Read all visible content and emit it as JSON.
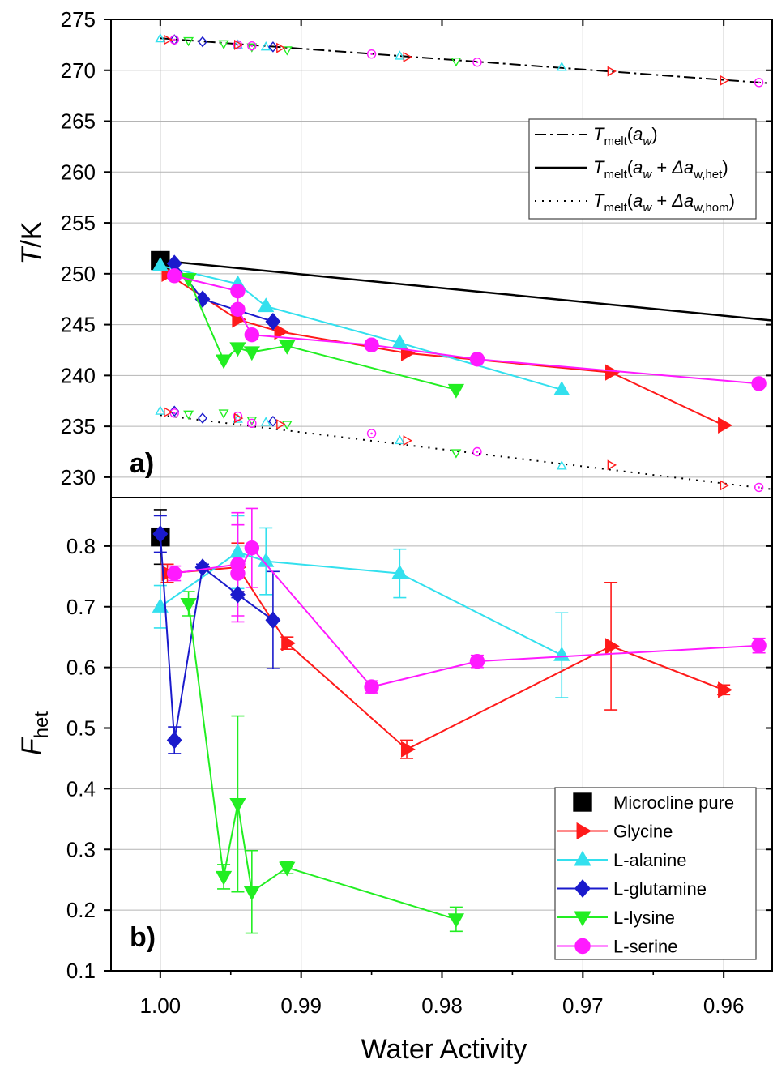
{
  "chart_data": {
    "type": "scatter",
    "x_axis": {
      "label": "Water Activity",
      "lim": [
        1.0035,
        0.9565
      ],
      "ticks": [
        1.0,
        0.99,
        0.98,
        0.97,
        0.96
      ],
      "tick_labels": [
        "1.00",
        "0.99",
        "0.98",
        "0.97",
        "0.96"
      ],
      "reversed": true,
      "grid": true
    },
    "panels": [
      {
        "id": "a",
        "label": "a)",
        "y_label_main": "T",
        "y_label_sep": "/",
        "y_label_unit": "K",
        "ylim": [
          228.0,
          275.0
        ],
        "yticks": [
          230,
          235,
          240,
          245,
          250,
          255,
          260,
          265,
          270,
          275
        ],
        "ytick_labels": [
          "230",
          "235",
          "240",
          "245",
          "250",
          "255",
          "260",
          "265",
          "270",
          "275"
        ],
        "grid": true,
        "lines": [
          {
            "id": "tmelt",
            "style": "dashdot",
            "x": [
              1.0,
              0.9565
            ],
            "y": [
              273.15,
              268.7
            ]
          },
          {
            "id": "tmelt_het",
            "style": "solid",
            "x": [
              1.0,
              0.9565
            ],
            "y": [
              251.3,
              245.4
            ]
          },
          {
            "id": "tmelt_hom",
            "style": "dotted",
            "x": [
              1.0,
              0.9565
            ],
            "y": [
              236.1,
              228.8
            ]
          }
        ],
        "legend": {
          "placement": "top-right",
          "entries": [
            {
              "style": "dashdot",
              "sym": "T",
              "sub": "melt",
              "open": "(",
              "aw": "a",
              "aw_sub": "w",
              "close": ")",
              "plus": "",
              "delta": "",
              "delta_sub": ""
            },
            {
              "style": "solid",
              "sym": "T",
              "sub": "melt",
              "open": "(",
              "aw": "a",
              "aw_sub": "w",
              "close": ")",
              "plus": " + ",
              "delta": "Δa",
              "delta_sub": "w,het"
            },
            {
              "style": "dotted",
              "sym": "T",
              "sub": "melt",
              "open": "(",
              "aw": "a",
              "aw_sub": "w",
              "close": ")",
              "plus": " + ",
              "delta": "Δa",
              "delta_sub": "w,hom"
            }
          ]
        },
        "series": [
          {
            "name": "Microcline pure",
            "color": "#000000",
            "marker": "square",
            "connected": false,
            "x": [
              1.0
            ],
            "y": [
              251.3
            ]
          },
          {
            "name": "Glycine",
            "color": "#ff1a1a",
            "marker": "triangle-right",
            "connected": true,
            "x": [
              0.9995,
              0.9945,
              0.9915,
              0.9825,
              0.968,
              0.96
            ],
            "y": [
              250.0,
              245.5,
              244.3,
              242.2,
              240.3,
              235.1
            ]
          },
          {
            "name": "L-alanine",
            "color": "#33e0ee",
            "marker": "triangle-up",
            "connected": true,
            "x": [
              1.0,
              0.9945,
              0.9925,
              0.983,
              0.9715
            ],
            "y": [
              250.8,
              249.0,
              246.8,
              243.2,
              238.6
            ]
          },
          {
            "name": "L-glutamine",
            "color": "#1a1acc",
            "marker": "diamond",
            "connected": true,
            "x": [
              0.999,
              0.997,
              0.992
            ],
            "y": [
              251.0,
              247.5,
              245.3
            ]
          },
          {
            "name": "L-lysine",
            "color": "#22ee22",
            "marker": "triangle-down",
            "connected": true,
            "x": [
              0.998,
              0.9955,
              0.9945,
              0.9935,
              0.991,
              0.979
            ],
            "y": [
              249.5,
              241.5,
              242.7,
              242.3,
              242.9,
              238.6
            ]
          },
          {
            "name": "L-serine",
            "color": "#ff1aff",
            "marker": "circle",
            "connected": true,
            "x": [
              0.999,
              0.9945,
              0.9945,
              0.9935,
              0.985,
              0.9775,
              0.9575
            ],
            "y": [
              249.8,
              248.3,
              246.5,
              244.0,
              243.0,
              241.6,
              239.2
            ]
          }
        ],
        "open_markers_melt": [
          {
            "marker": "triangle-up",
            "color": "#33e0ee",
            "x": [
              1.0,
              0.9945,
              0.9925,
              0.983,
              0.9715
            ],
            "y": [
              273.1,
              272.5,
              272.3,
              271.4,
              270.3
            ]
          },
          {
            "marker": "diamond",
            "color": "#1a1acc",
            "x": [
              0.999,
              0.997,
              0.992
            ],
            "y": [
              273.0,
              272.8,
              272.3
            ]
          },
          {
            "marker": "triangle-down",
            "color": "#22ee22",
            "x": [
              0.998,
              0.9955,
              0.9935,
              0.991,
              0.979
            ],
            "y": [
              272.9,
              272.6,
              272.3,
              272.0,
              270.9
            ]
          },
          {
            "marker": "circle",
            "color": "#ff1aff",
            "x": [
              0.999,
              0.9945,
              0.9935,
              0.985,
              0.9775,
              0.9575
            ],
            "y": [
              273.0,
              272.5,
              272.4,
              271.6,
              270.8,
              268.8
            ]
          },
          {
            "marker": "triangle-right",
            "color": "#ff1a1a",
            "x": [
              0.9995,
              0.9945,
              0.9915,
              0.9825,
              0.968,
              0.96
            ],
            "y": [
              273.0,
              272.5,
              272.2,
              271.3,
              269.9,
              269.0
            ]
          }
        ],
        "open_markers_hom": [
          {
            "marker": "triangle-up",
            "color": "#33e0ee",
            "x": [
              1.0,
              0.9945,
              0.9925,
              0.983,
              0.9715
            ],
            "y": [
              236.5,
              235.7,
              235.4,
              233.6,
              231.1
            ]
          },
          {
            "marker": "diamond",
            "color": "#1a1acc",
            "x": [
              0.999,
              0.997,
              0.992
            ],
            "y": [
              236.5,
              235.8,
              235.5
            ]
          },
          {
            "marker": "triangle-down",
            "color": "#22ee22",
            "x": [
              0.998,
              0.9955,
              0.9935,
              0.991,
              0.979
            ],
            "y": [
              236.2,
              236.3,
              235.6,
              235.2,
              232.4
            ]
          },
          {
            "marker": "circle",
            "color": "#ff1aff",
            "x": [
              0.999,
              0.9945,
              0.9935,
              0.985,
              0.9775,
              0.9575
            ],
            "y": [
              236.3,
              236.0,
              235.3,
              234.3,
              232.5,
              229.0
            ]
          },
          {
            "marker": "triangle-right",
            "color": "#ff1a1a",
            "x": [
              0.9995,
              0.9945,
              0.9915,
              0.9825,
              0.968,
              0.96
            ],
            "y": [
              236.4,
              235.8,
              235.2,
              233.6,
              231.2,
              229.2
            ]
          }
        ]
      },
      {
        "id": "b",
        "label": "b)",
        "y_label_main": "F",
        "y_label_sub": "het",
        "ylim": [
          0.1,
          0.88
        ],
        "yticks": [
          0.1,
          0.2,
          0.3,
          0.4,
          0.5,
          0.6,
          0.7,
          0.8
        ],
        "ytick_labels": [
          "0.1",
          "0.2",
          "0.3",
          "0.4",
          "0.5",
          "0.6",
          "0.7",
          "0.8"
        ],
        "grid": true,
        "legend": {
          "placement": "bottom-right",
          "entries": [
            "Microcline pure",
            "Glycine",
            "L-alanine",
            "L-glutamine",
            "L-lysine",
            "L-serine"
          ]
        },
        "series": [
          {
            "name": "Microcline pure",
            "color": "#000000",
            "marker": "square",
            "connected": false,
            "x": [
              1.0
            ],
            "y": [
              0.815
            ],
            "err": [
              0.045
            ]
          },
          {
            "name": "Glycine",
            "color": "#ff1a1a",
            "marker": "triangle-right",
            "connected": true,
            "x": [
              0.9995,
              0.9945,
              0.991,
              0.9825,
              0.968,
              0.96
            ],
            "y": [
              0.755,
              0.765,
              0.64,
              0.465,
              0.635,
              0.563
            ],
            "err": [
              0.015,
              0.04,
              0.01,
              0.015,
              0.105,
              0.008
            ]
          },
          {
            "name": "L-alanine",
            "color": "#33e0ee",
            "marker": "triangle-up",
            "connected": true,
            "x": [
              1.0,
              0.9945,
              0.9925,
              0.983,
              0.9715
            ],
            "y": [
              0.7,
              0.79,
              0.775,
              0.755,
              0.62
            ],
            "err": [
              0.035,
              0.06,
              0.055,
              0.04,
              0.07
            ]
          },
          {
            "name": "L-glutamine",
            "color": "#1a1acc",
            "marker": "diamond",
            "connected": true,
            "x": [
              1.0,
              0.999,
              0.997,
              0.9945,
              0.992
            ],
            "y": [
              0.82,
              0.48,
              0.765,
              0.72,
              0.678
            ],
            "err": [
              0.03,
              0.022,
              0.005,
              0.005,
              0.08
            ]
          },
          {
            "name": "L-lysine",
            "color": "#22ee22",
            "marker": "triangle-down",
            "connected": true,
            "x": [
              0.998,
              0.9955,
              0.9945,
              0.9935,
              0.991,
              0.979
            ],
            "y": [
              0.705,
              0.255,
              0.375,
              0.23,
              0.27,
              0.185
            ],
            "err": [
              0.02,
              0.02,
              0.145,
              0.068,
              0.01,
              0.02
            ]
          },
          {
            "name": "L-serine",
            "color": "#ff1aff",
            "marker": "circle",
            "connected": true,
            "x": [
              0.999,
              0.9945,
              0.9945,
              0.9935,
              0.985,
              0.9775,
              0.9575
            ],
            "y": [
              0.755,
              0.77,
              0.755,
              0.797,
              0.568,
              0.61,
              0.636
            ],
            "err": [
              0.012,
              0.085,
              0.08,
              0.065,
              0.01,
              0.01,
              0.012
            ]
          }
        ]
      }
    ]
  }
}
